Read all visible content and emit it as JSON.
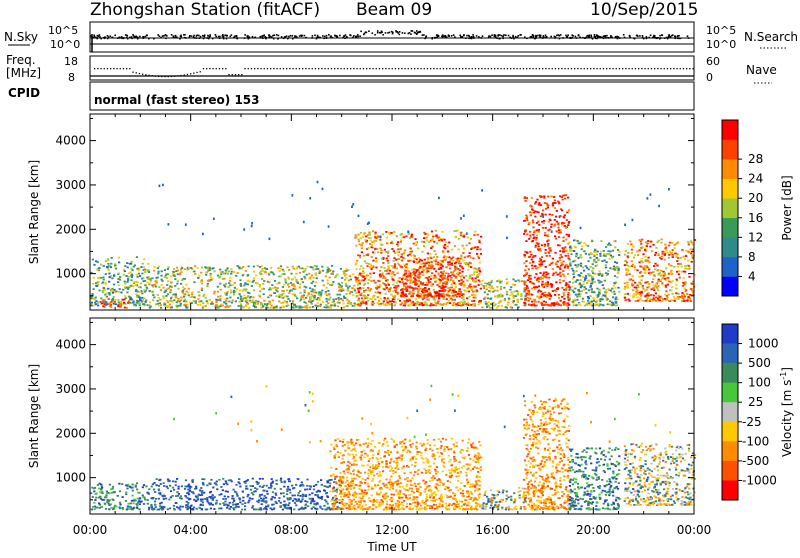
{
  "header": {
    "station": "Zhongshan Station (fitACF)",
    "beam": "Beam 09",
    "date": "10/Sep/2015"
  },
  "strip_panels": {
    "nsky": {
      "label": "N.Sky",
      "tick_top": "10^5",
      "tick_bottom": "10^0"
    },
    "nsearch": {
      "label": "N.Search",
      "tick_top": "10^5",
      "tick_bottom": "10^0"
    },
    "freq": {
      "label_line1": "Freq.",
      "label_line2": "[MHz]",
      "tick_top": "18",
      "tick_bottom": "8"
    },
    "nave": {
      "label": "Nave",
      "tick_top": "60",
      "tick_bottom": "0"
    },
    "cpid": {
      "label": "CPID",
      "value": "normal (fast stereo) 153"
    }
  },
  "chart_data": [
    {
      "type": "heatmap",
      "title": "",
      "quantity": "Power",
      "ylabel": "Slant Range [km]",
      "xlabel": "Time UT",
      "ylim": [
        180,
        4600
      ],
      "xlim": [
        0,
        24
      ],
      "x_ticks": [
        "00:00",
        "04:00",
        "08:00",
        "12:00",
        "16:00",
        "20:00",
        "00:00"
      ],
      "y_ticks": [
        "1000",
        "2000",
        "3000",
        "4000"
      ],
      "colorbar": {
        "label": "Power [dB]",
        "ticks": [
          "4",
          "8",
          "12",
          "16",
          "20",
          "24",
          "28"
        ],
        "colors": [
          "#0000ff",
          "#1e64c8",
          "#2f8a8a",
          "#3a9a5a",
          "#a0c832",
          "#ffc800",
          "#ff8c00",
          "#ff4000",
          "#ff0000"
        ]
      },
      "scatter_regions": [
        {
          "x_range": [
            0,
            2.3
          ],
          "range_km": [
            300,
            1400
          ],
          "level": "low-mid"
        },
        {
          "x_range": [
            0.4,
            1.6
          ],
          "range_km": [
            250,
            450
          ],
          "level": "high"
        },
        {
          "x_range": [
            2.3,
            10.5
          ],
          "range_km": [
            250,
            1200
          ],
          "level": "mid"
        },
        {
          "x_range": [
            10.5,
            15.5
          ],
          "range_km": [
            300,
            2000
          ],
          "level": "mid-high"
        },
        {
          "x_range": [
            12.3,
            14.8
          ],
          "range_km": [
            500,
            1400
          ],
          "level": "high"
        },
        {
          "x_range": [
            15.5,
            17.3
          ],
          "range_km": [
            250,
            900
          ],
          "level": "mid"
        },
        {
          "x_range": [
            17.2,
            19.0
          ],
          "range_km": [
            300,
            2800
          ],
          "level": "high"
        },
        {
          "x_range": [
            19.0,
            21.0
          ],
          "range_km": [
            300,
            1800
          ],
          "level": "low-mid"
        },
        {
          "x_range": [
            21.2,
            24
          ],
          "range_km": [
            400,
            1800
          ],
          "level": "mid-high"
        }
      ]
    },
    {
      "type": "heatmap",
      "title": "",
      "quantity": "Velocity",
      "ylabel": "Slant Range [km]",
      "xlabel": "Time UT",
      "ylim": [
        180,
        4600
      ],
      "xlim": [
        0,
        24
      ],
      "x_ticks": [
        "00:00",
        "04:00",
        "08:00",
        "12:00",
        "16:00",
        "20:00",
        "00:00"
      ],
      "y_ticks": [
        "1000",
        "2000",
        "3000",
        "4000"
      ],
      "colorbar": {
        "label": "Velocity [m s^-1]",
        "ticks": [
          "1000",
          "500",
          "100",
          "25",
          "-25",
          "-100",
          "-500",
          "-1000"
        ],
        "colors": [
          "#1e3cc8",
          "#2a64b4",
          "#3a8a5a",
          "#46c83a",
          "#c0c0c0",
          "#ffc800",
          "#ff8c00",
          "#ff5000",
          "#ff0000"
        ]
      },
      "scatter_regions": [
        {
          "x_range": [
            0,
            2.3
          ],
          "range_km": [
            300,
            900
          ],
          "level": "positive"
        },
        {
          "x_range": [
            2.3,
            10.0
          ],
          "range_km": [
            300,
            1000
          ],
          "level": "positive-strong"
        },
        {
          "x_range": [
            9.5,
            15.5
          ],
          "range_km": [
            300,
            1900
          ],
          "level": "negative"
        },
        {
          "x_range": [
            15.5,
            17.3
          ],
          "range_km": [
            300,
            800
          ],
          "level": "mixed"
        },
        {
          "x_range": [
            17.2,
            19.0
          ],
          "range_km": [
            300,
            2800
          ],
          "level": "negative"
        },
        {
          "x_range": [
            19.0,
            21.0
          ],
          "range_km": [
            300,
            1700
          ],
          "level": "positive"
        },
        {
          "x_range": [
            21.2,
            24
          ],
          "range_km": [
            400,
            1800
          ],
          "level": "mixed"
        }
      ]
    }
  ]
}
